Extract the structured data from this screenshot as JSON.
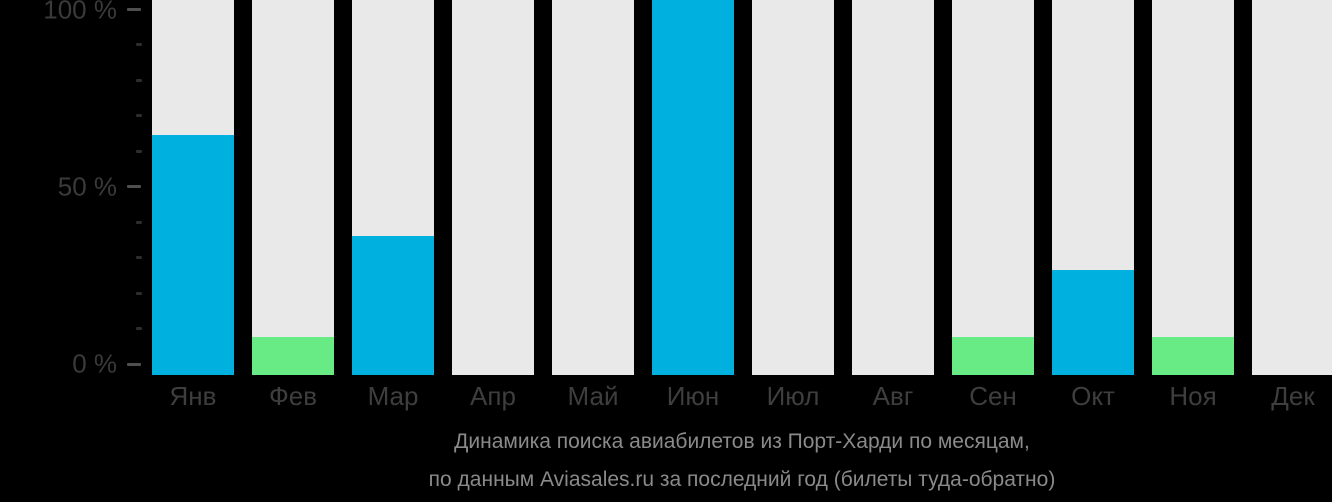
{
  "chart_data": {
    "type": "bar",
    "title": "Динамика поиска авиабилетов из Порт-Харди по месяцам,",
    "subtitle": "по данным Aviasales.ru за последний год (билеты туда-обратно)",
    "xlabel": "",
    "ylabel": "",
    "ylim": [
      0,
      100
    ],
    "grid": "off",
    "legend": "none",
    "categories": [
      "Янв",
      "Фев",
      "Мар",
      "Апр",
      "Май",
      "Июн",
      "Июл",
      "Авг",
      "Сен",
      "Окт",
      "Ноя",
      "Дек"
    ],
    "values": [
      64,
      10,
      37,
      0,
      0,
      100,
      0,
      0,
      10,
      28,
      10,
      0
    ],
    "bar_colors": [
      "blue",
      "green",
      "blue",
      "none",
      "none",
      "blue",
      "none",
      "none",
      "green",
      "blue",
      "green",
      "none"
    ],
    "y_ticks_major": [
      {
        "value": 100,
        "label": "100 %"
      },
      {
        "value": 50,
        "label": "50 %"
      },
      {
        "value": 0,
        "label": "0 %"
      }
    ],
    "y_ticks_minor": [
      90,
      80,
      70,
      60,
      40,
      30,
      20,
      10
    ],
    "colors": {
      "background": "#000000",
      "bar_track": "#e9e9e9",
      "blue": "#00b0de",
      "green": "#68ea85",
      "axis_label_text": "#3a3a3a",
      "month_label_text": "#3e3e3e",
      "tick_major": "#4f4f4f",
      "tick_minor": "#2d2d2d",
      "caption_text": "#8a8a8a"
    }
  },
  "caption": {
    "line1": "Динамика поиска авиабилетов из Порт-Харди по месяцам,",
    "line2": "по данным Aviasales.ru за последний год (билеты туда-обратно)"
  }
}
